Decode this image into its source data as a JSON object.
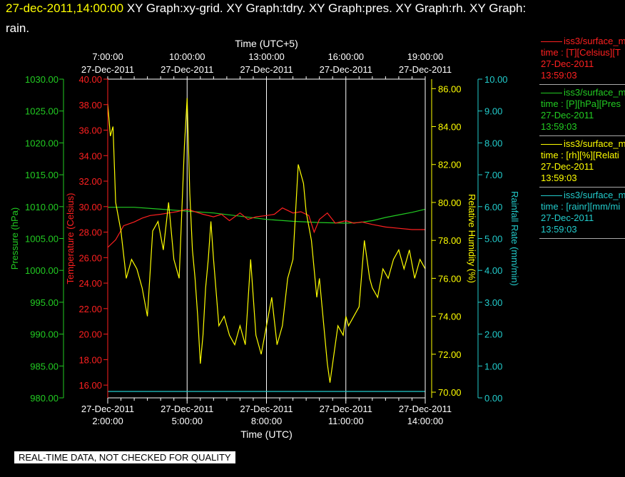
{
  "header": {
    "timestamp": "27-dec-2011,14:00:00",
    "graphs_line1": " XY Graph:xy-grid.  XY Graph:tdry.  XY Graph:pres.  XY Graph:rh.  XY Graph:",
    "graphs_line2": "rain."
  },
  "legend": [
    {
      "line": "iss3/surface_me",
      "label": "time : [T][Celsius][T",
      "date": "27-Dec-2011",
      "time": "13:59:03",
      "color": "#ff2020"
    },
    {
      "line": "iss3/surface_me",
      "label": "time : [P][hPa][Pres",
      "date": "27-Dec-2011",
      "time": "13:59:03",
      "color": "#22cc22"
    },
    {
      "line": "iss3/surface_me",
      "label": "time : [rh][%][Relati",
      "date": "27-Dec-2011",
      "time": "13:59:03",
      "color": "#ffff00"
    },
    {
      "line": "iss3/surface_me",
      "label": "time : [rainr][mm/mi",
      "date": "27-Dec-2011",
      "time": "13:59:03",
      "color": "#22cccc"
    }
  ],
  "notice": "REAL-TIME DATA, NOT CHECKED FOR QUALITY",
  "chart_data": {
    "type": "line",
    "title": "",
    "top_axis": {
      "title": "Time (UTC+5)",
      "ticks": [
        {
          "time": "7:00:00",
          "date": "27-Dec-2011"
        },
        {
          "time": "10:00:00",
          "date": "27-Dec-2011"
        },
        {
          "time": "13:00:00",
          "date": "27-Dec-2011"
        },
        {
          "time": "16:00:00",
          "date": "27-Dec-2011"
        },
        {
          "time": "19:00:00",
          "date": "27-Dec-2011"
        }
      ]
    },
    "bottom_axis": {
      "title": "Time (UTC)",
      "range": [
        "2:00:00",
        "14:00:00"
      ],
      "ticks": [
        {
          "date": "27-Dec-2011",
          "time": "2:00:00"
        },
        {
          "date": "27-Dec-2011",
          "time": "5:00:00"
        },
        {
          "date": "27-Dec-2011",
          "time": "8:00:00"
        },
        {
          "date": "27-Dec-2011",
          "time": "11:00:00"
        },
        {
          "date": "27-Dec-2011",
          "time": "14:00:00"
        }
      ]
    },
    "axes": {
      "pressure": {
        "label": "Pressure (hPa)",
        "ylim": [
          980,
          1030
        ],
        "ticks": [
          "1030.00",
          "1025.00",
          "1020.00",
          "1015.00",
          "1010.00",
          "1005.00",
          "1000.00",
          "995.00",
          "990.00",
          "985.00",
          "980.00"
        ],
        "color": "#22cc22"
      },
      "temperature": {
        "label": "Temperature (Celsius)",
        "ylim": [
          15,
          40
        ],
        "ticks": [
          "40.00",
          "38.00",
          "36.00",
          "34.00",
          "32.00",
          "30.00",
          "28.00",
          "26.00",
          "24.00",
          "22.00",
          "20.00",
          "18.00",
          "16.00"
        ],
        "color": "#ff2020"
      },
      "humidity": {
        "label": "Relative Humidity (%)",
        "ylim": [
          69.7,
          86.5
        ],
        "ticks": [
          "86.00",
          "84.00",
          "82.00",
          "80.00",
          "78.00",
          "76.00",
          "74.00",
          "72.00",
          "70.00"
        ],
        "color": "#ffff00"
      },
      "rainfall": {
        "label": "Rainfall Rate (mm/min)",
        "ylim": [
          0,
          10
        ],
        "ticks": [
          "10.00",
          "9.00",
          "8.00",
          "7.00",
          "6.00",
          "5.00",
          "4.00",
          "3.00",
          "2.00",
          "1.00",
          "0.00"
        ],
        "color": "#22cccc"
      }
    },
    "series": [
      {
        "axis": "temperature",
        "color": "#ff2020",
        "x": [
          2.0,
          2.3,
          2.6,
          3.0,
          3.3,
          3.6,
          4.0,
          4.3,
          4.6,
          5.0,
          5.3,
          5.6,
          6.0,
          6.3,
          6.6,
          7.0,
          7.3,
          7.6,
          8.0,
          8.3,
          8.6,
          9.0,
          9.3,
          9.6,
          9.8,
          10.0,
          10.3,
          10.6,
          11.0,
          11.3,
          11.6,
          12.0,
          12.5,
          13.0,
          13.5,
          14.0
        ],
        "y": [
          26.8,
          27.4,
          28.5,
          28.8,
          29.1,
          29.3,
          29.4,
          29.5,
          29.6,
          29.8,
          29.6,
          29.4,
          29.2,
          29.4,
          28.9,
          29.5,
          29.0,
          29.2,
          29.3,
          29.4,
          29.9,
          29.5,
          29.6,
          29.3,
          28.0,
          29.0,
          29.5,
          28.7,
          28.9,
          28.7,
          28.8,
          28.6,
          28.4,
          28.3,
          28.2,
          28.2
        ]
      },
      {
        "axis": "pressure",
        "color": "#22cc22",
        "x": [
          2.0,
          3.0,
          4.0,
          5.0,
          6.0,
          7.0,
          8.0,
          9.0,
          10.0,
          11.0,
          11.5,
          12.0,
          12.5,
          13.0,
          13.5,
          14.0
        ],
        "y": [
          1009.9,
          1009.9,
          1009.6,
          1009.3,
          1009.0,
          1008.5,
          1008.0,
          1007.7,
          1007.5,
          1007.4,
          1007.5,
          1007.8,
          1008.3,
          1008.7,
          1009.1,
          1009.6
        ]
      },
      {
        "axis": "humidity",
        "color": "#ffff00",
        "x": [
          2.0,
          2.1,
          2.2,
          2.3,
          2.5,
          2.7,
          2.9,
          3.1,
          3.3,
          3.5,
          3.7,
          3.9,
          4.1,
          4.3,
          4.5,
          4.7,
          4.9,
          5.0,
          5.1,
          5.2,
          5.3,
          5.4,
          5.5,
          5.6,
          5.7,
          5.8,
          5.9,
          6.0,
          6.2,
          6.4,
          6.6,
          6.8,
          7.0,
          7.2,
          7.4,
          7.6,
          7.8,
          8.0,
          8.2,
          8.4,
          8.6,
          8.8,
          9.0,
          9.2,
          9.4,
          9.5,
          9.7,
          9.9,
          10.0,
          10.1,
          10.2,
          10.3,
          10.4,
          10.5,
          10.7,
          10.9,
          11.0,
          11.1,
          11.3,
          11.5,
          11.7,
          11.9,
          12.0,
          12.2,
          12.4,
          12.6,
          12.8,
          13.0,
          13.2,
          13.4,
          13.6,
          13.8,
          14.0
        ],
        "y": [
          85.2,
          83.5,
          84.0,
          80.0,
          78.5,
          76.0,
          77.0,
          76.5,
          75.5,
          74.0,
          78.5,
          79.0,
          77.5,
          80.0,
          77.0,
          76.0,
          83.0,
          85.5,
          80.5,
          77.5,
          76.0,
          74.0,
          71.5,
          73.0,
          75.5,
          77.0,
          79.0,
          77.0,
          73.5,
          74.0,
          73.0,
          72.5,
          73.5,
          72.5,
          77.0,
          73.0,
          72.0,
          73.5,
          75.0,
          72.5,
          73.5,
          76.0,
          77.0,
          82.0,
          81.0,
          79.5,
          78.0,
          75.0,
          76.0,
          74.5,
          73.0,
          71.5,
          70.5,
          71.5,
          73.5,
          73.0,
          74.0,
          73.5,
          74.0,
          74.5,
          78.0,
          76.0,
          75.5,
          75.0,
          76.5,
          76.0,
          77.0,
          77.5,
          76.5,
          77.5,
          76.0,
          77.0,
          76.5
        ]
      },
      {
        "axis": "rainfall",
        "color": "#22cccc",
        "x": [
          2.0,
          14.0
        ],
        "y": [
          0.0,
          0.0
        ]
      }
    ],
    "grid": "vertical",
    "legend_position": "right"
  }
}
